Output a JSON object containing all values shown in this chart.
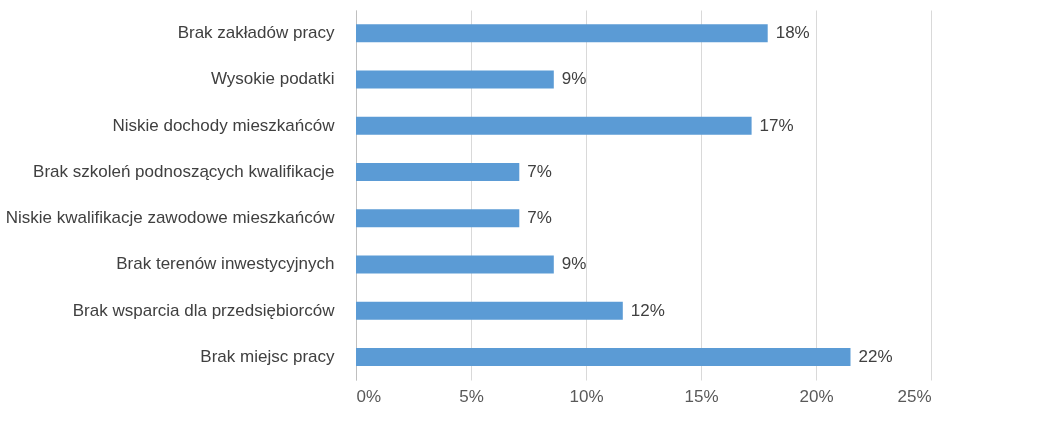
{
  "chart_data": {
    "type": "bar",
    "orientation": "horizontal",
    "categories": [
      "Brak zakładów pracy",
      "Wysokie podatki",
      "Niskie dochody mieszkańców",
      "Brak szkoleń podnoszących kwalifikacje",
      "Niskie kwalifikacje zawodowe mieszkańców",
      "Brak terenów inwestycyjnych",
      "Brak wsparcia dla przedsiębiorców",
      "Brak miejsc pracy"
    ],
    "values": [
      17.9,
      8.6,
      17.2,
      7.1,
      7.1,
      8.6,
      11.6,
      21.5
    ],
    "value_labels": [
      "18%",
      "9%",
      "17%",
      "7%",
      "7%",
      "9%",
      "12%",
      "22%"
    ],
    "color": "#5b9bd5",
    "xlim": [
      0,
      25
    ],
    "xticks": [
      {
        "value": 0,
        "label": "0%"
      },
      {
        "value": 5,
        "label": "5%"
      },
      {
        "value": 10,
        "label": "10%"
      },
      {
        "value": 15,
        "label": "15%"
      },
      {
        "value": 20,
        "label": "20%"
      },
      {
        "value": 25,
        "label": "25%"
      }
    ],
    "grid": "x"
  }
}
